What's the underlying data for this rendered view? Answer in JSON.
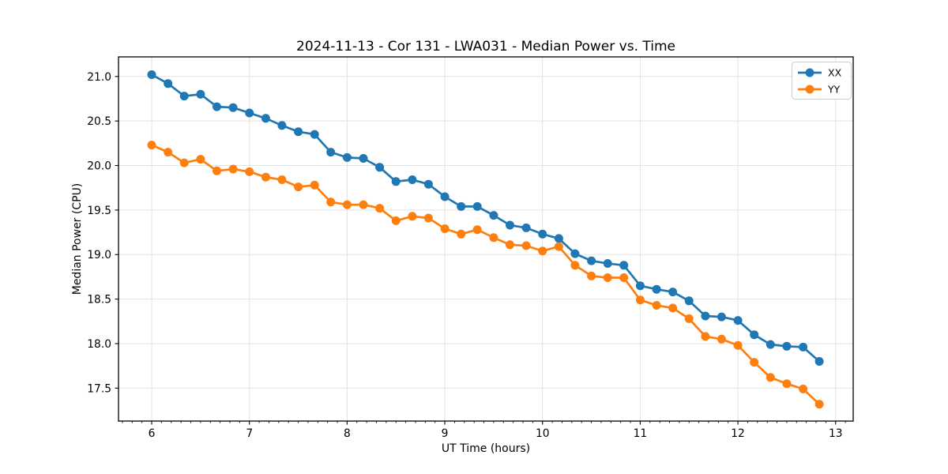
{
  "chart_data": {
    "type": "line",
    "title": "2024-11-13 - Cor 131 - LWA031 - Median Power vs. Time",
    "xlabel": "UT Time (hours)",
    "ylabel": "Median Power (CPU)",
    "xlim": [
      5.66,
      13.18
    ],
    "ylim": [
      17.13,
      21.22
    ],
    "xticks": [
      6,
      7,
      8,
      9,
      10,
      11,
      12,
      13
    ],
    "xtick_labels": [
      "6",
      "7",
      "8",
      "9",
      "10",
      "11",
      "12",
      "13"
    ],
    "yticks": [
      17.5,
      18.0,
      18.5,
      19.0,
      19.5,
      20.0,
      20.5,
      21.0
    ],
    "ytick_labels": [
      "17.5",
      "18.0",
      "18.5",
      "19.0",
      "19.5",
      "20.0",
      "20.5",
      "21.0"
    ],
    "minor_xtick_step": 0.1,
    "grid": true,
    "grid_color": "#e2e2e2",
    "legend_position": "upper right",
    "x": [
      6.0,
      6.167,
      6.333,
      6.5,
      6.667,
      6.833,
      7.0,
      7.167,
      7.333,
      7.5,
      7.667,
      7.833,
      8.0,
      8.167,
      8.333,
      8.5,
      8.667,
      8.833,
      9.0,
      9.167,
      9.333,
      9.5,
      9.667,
      9.833,
      10.0,
      10.167,
      10.333,
      10.5,
      10.667,
      10.833,
      11.0,
      11.167,
      11.333,
      11.5,
      11.667,
      11.833,
      12.0,
      12.167,
      12.333,
      12.5,
      12.667,
      12.833
    ],
    "series": [
      {
        "name": "XX",
        "color": "#1f77b4",
        "marker": "circle",
        "values": [
          21.02,
          20.92,
          20.78,
          20.8,
          20.66,
          20.65,
          20.59,
          20.53,
          20.45,
          20.38,
          20.35,
          20.15,
          20.09,
          20.08,
          19.98,
          19.82,
          19.84,
          19.79,
          19.65,
          19.54,
          19.54,
          19.44,
          19.33,
          19.3,
          19.23,
          19.18,
          19.01,
          18.93,
          18.9,
          18.88,
          18.65,
          18.61,
          18.58,
          18.48,
          18.31,
          18.3,
          18.26,
          18.1,
          17.99,
          17.97,
          17.96,
          17.8
        ]
      },
      {
        "name": "YY",
        "color": "#ff7f0e",
        "marker": "circle",
        "values": [
          20.23,
          20.15,
          20.03,
          20.07,
          19.94,
          19.96,
          19.93,
          19.87,
          19.84,
          19.76,
          19.78,
          19.59,
          19.56,
          19.56,
          19.52,
          19.38,
          19.43,
          19.41,
          19.29,
          19.23,
          19.28,
          19.19,
          19.11,
          19.1,
          19.04,
          19.09,
          18.88,
          18.76,
          18.74,
          18.74,
          18.49,
          18.43,
          18.4,
          18.28,
          18.08,
          18.05,
          17.98,
          17.79,
          17.62,
          17.55,
          17.49,
          17.32
        ]
      }
    ]
  }
}
